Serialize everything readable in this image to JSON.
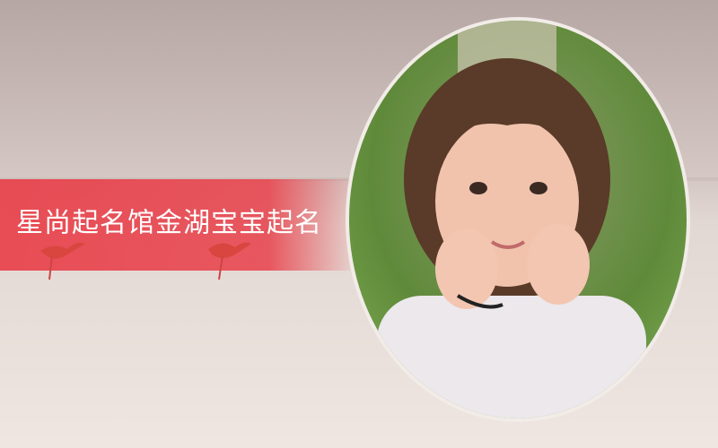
{
  "banner": {
    "title": "星尚起名馆金湖宝宝起名"
  }
}
